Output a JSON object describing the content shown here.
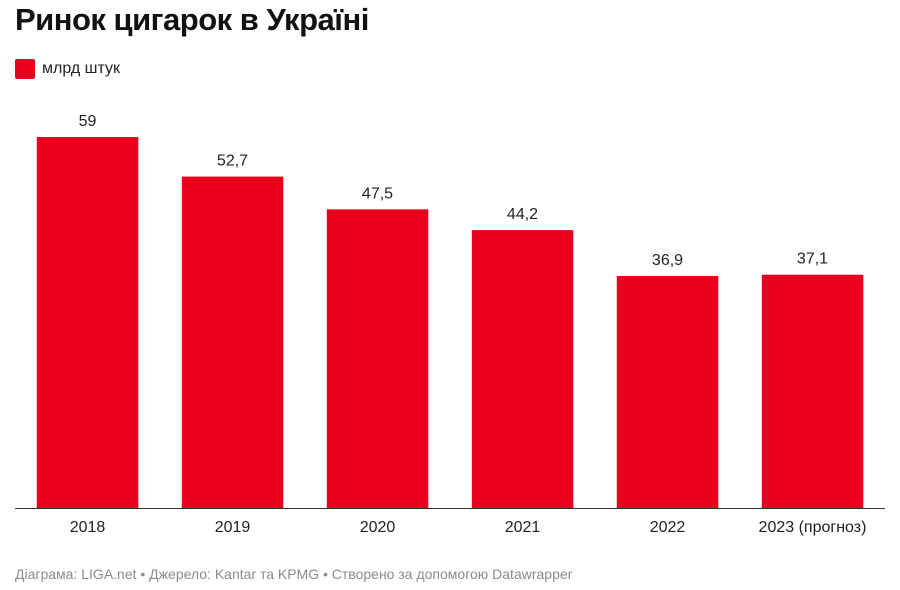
{
  "chart_data": {
    "type": "bar",
    "title": "Ринок цигарок в Україні",
    "legend": "млрд штук",
    "categories": [
      "2018",
      "2019",
      "2020",
      "2021",
      "2022",
      "2023 (прогноз)"
    ],
    "values": [
      59,
      52.7,
      47.5,
      44.2,
      36.9,
      37.1
    ],
    "value_labels": [
      "59",
      "52,7",
      "47,5",
      "44,2",
      "36,9",
      "37,1"
    ],
    "ylim": [
      0,
      59
    ],
    "grid": false,
    "legend_position": "top-left",
    "bar_color": "#e8001e"
  },
  "footer": "Діаграма: LIGA.net • Джерело: Kantar та KPMG • Створено за допомогою Datawrapper"
}
